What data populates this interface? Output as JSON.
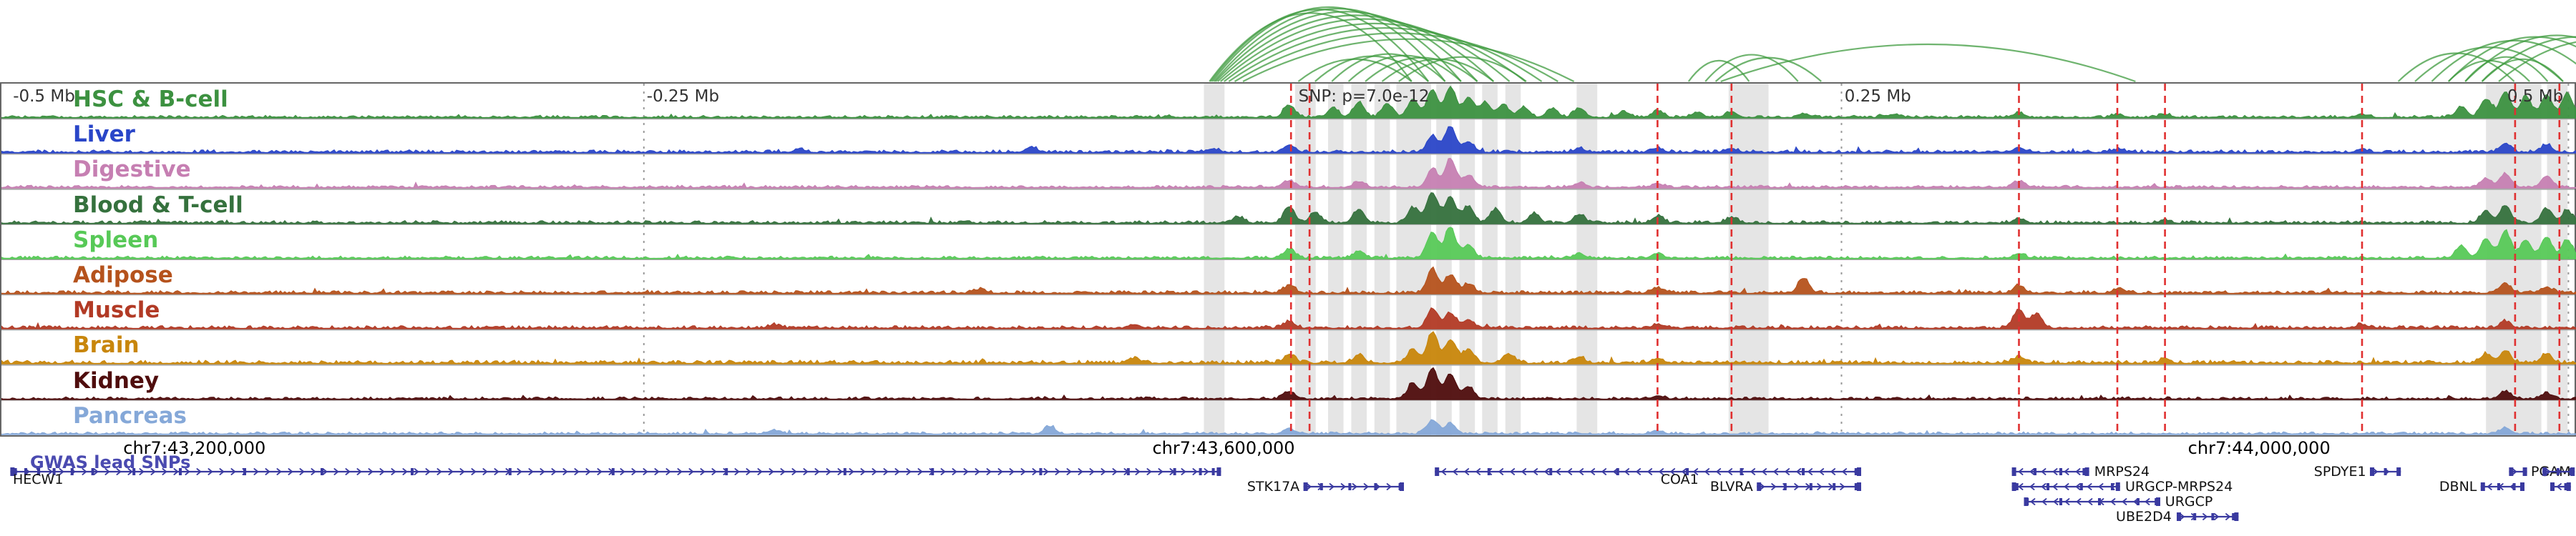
{
  "chart_data": {
    "type": "genome-browser",
    "gwas_track_label": "GWAS lead SNPs",
    "snp_annotation": {
      "text": "SNP: p=7.0e-12",
      "x": 0.5035
    },
    "relative_scale_labels": [
      {
        "text": "-0.5 Mb",
        "x": 0.0045,
        "anchor": "start"
      },
      {
        "text": "-0.25 Mb",
        "x": 0.2505,
        "anchor": "start"
      },
      {
        "text": "0.25 Mb",
        "x": 0.7155,
        "anchor": "start"
      },
      {
        "text": "0.5 Mb",
        "x": 0.9945,
        "anchor": "end"
      }
    ],
    "region": {
      "coordinate_labels": [
        {
          "text": "chr7:43,200,000",
          "x": 0.0755
        },
        {
          "text": "chr7:43,600,000",
          "x": 0.475
        },
        {
          "text": "chr7:44,000,000",
          "x": 0.877
        }
      ]
    },
    "gridlines": [
      0.2494,
      0.7143,
      0.9965
    ],
    "lead_snp_positions": [
      0.5006,
      0.5078,
      0.6429,
      0.6716,
      0.7832,
      0.8214,
      0.8399,
      0.9164,
      0.9758,
      0.993
    ],
    "highlight_bands": [
      [
        0.4668,
        0.008
      ],
      [
        0.5022,
        0.008
      ],
      [
        0.515,
        0.006
      ],
      [
        0.524,
        0.006
      ],
      [
        0.533,
        0.006
      ],
      [
        0.5415,
        0.0135
      ],
      [
        0.557,
        0.006
      ],
      [
        0.566,
        0.006
      ],
      [
        0.5748,
        0.006
      ],
      [
        0.5838,
        0.006
      ],
      [
        0.6115,
        0.008
      ],
      [
        0.6705,
        0.0155
      ],
      [
        0.9645,
        0.0215
      ],
      [
        0.9882,
        0.008
      ]
    ],
    "interaction_arcs": [
      [
        0.4695,
        0.548,
        0.92
      ],
      [
        0.47,
        0.5545,
        0.97
      ],
      [
        0.4706,
        0.561,
        1.0
      ],
      [
        0.4713,
        0.5672,
        0.98
      ],
      [
        0.4719,
        0.5735,
        0.94
      ],
      [
        0.4727,
        0.5798,
        0.89
      ],
      [
        0.4738,
        0.586,
        0.84
      ],
      [
        0.4752,
        0.5922,
        0.78
      ],
      [
        0.477,
        0.5985,
        0.72
      ],
      [
        0.4793,
        0.6048,
        0.65
      ],
      [
        0.4825,
        0.611,
        0.57
      ],
      [
        0.504,
        0.548,
        0.3
      ],
      [
        0.5105,
        0.5545,
        0.34
      ],
      [
        0.517,
        0.561,
        0.37
      ],
      [
        0.5235,
        0.5672,
        0.35
      ],
      [
        0.53,
        0.5735,
        0.32
      ],
      [
        0.5365,
        0.5798,
        0.3
      ],
      [
        0.543,
        0.5925,
        0.33
      ],
      [
        0.6555,
        0.679,
        0.28
      ],
      [
        0.662,
        0.698,
        0.36
      ],
      [
        0.666,
        0.707,
        0.32
      ],
      [
        0.668,
        0.829,
        0.5
      ],
      [
        0.931,
        0.976,
        0.38
      ],
      [
        0.9375,
        0.995,
        0.46
      ],
      [
        0.944,
        1.008,
        0.55
      ],
      [
        0.9505,
        1.018,
        0.6
      ],
      [
        0.957,
        1.028,
        0.62
      ],
      [
        0.9635,
        1.038,
        0.6
      ],
      [
        0.97,
        1.048,
        0.56
      ],
      [
        0.957,
        0.989,
        0.33
      ],
      [
        0.9635,
        0.995,
        0.3
      ],
      [
        0.9505,
        0.982,
        0.28
      ]
    ],
    "tracks": [
      {
        "name": "HSC & B-cell",
        "color": "#3c9140",
        "noise": 0.05,
        "peaks": [
          [
            0.5,
            0.4
          ],
          [
            0.517,
            0.3
          ],
          [
            0.527,
            0.5
          ],
          [
            0.538,
            0.45
          ],
          [
            0.548,
            0.6
          ],
          [
            0.5555,
            0.9
          ],
          [
            0.5625,
            1.0
          ],
          [
            0.5695,
            0.65
          ],
          [
            0.576,
            0.5
          ],
          [
            0.583,
            0.42
          ],
          [
            0.591,
            0.34
          ],
          [
            0.602,
            0.28
          ],
          [
            0.6125,
            0.3
          ],
          [
            0.63,
            0.18
          ],
          [
            0.6429,
            0.22
          ],
          [
            0.658,
            0.15
          ],
          [
            0.6716,
            0.18
          ],
          [
            0.7,
            0.12
          ],
          [
            0.735,
            0.1
          ],
          [
            0.7832,
            0.15
          ],
          [
            0.8214,
            0.1
          ],
          [
            0.8399,
            0.1
          ],
          [
            0.9164,
            0.1
          ],
          [
            0.955,
            0.35
          ],
          [
            0.9645,
            0.6
          ],
          [
            0.972,
            0.85
          ],
          [
            0.98,
            0.7
          ],
          [
            0.988,
            0.75
          ],
          [
            0.996,
            0.8
          ]
        ]
      },
      {
        "name": "Liver",
        "color": "#2a46c8",
        "noise": 0.06,
        "peaks": [
          [
            0.31,
            0.1
          ],
          [
            0.4,
            0.16
          ],
          [
            0.47,
            0.12
          ],
          [
            0.5,
            0.25
          ],
          [
            0.5555,
            0.55
          ],
          [
            0.5625,
            0.85
          ],
          [
            0.5695,
            0.35
          ],
          [
            0.6125,
            0.12
          ],
          [
            0.6429,
            0.14
          ],
          [
            0.6716,
            0.12
          ],
          [
            0.7832,
            0.16
          ],
          [
            0.8214,
            0.1
          ],
          [
            0.9164,
            0.1
          ],
          [
            0.972,
            0.3
          ],
          [
            0.988,
            0.25
          ]
        ]
      },
      {
        "name": "Digestive",
        "color": "#c67fb2",
        "noise": 0.05,
        "peaks": [
          [
            0.5,
            0.22
          ],
          [
            0.527,
            0.18
          ],
          [
            0.5555,
            0.6
          ],
          [
            0.5625,
            0.95
          ],
          [
            0.5695,
            0.4
          ],
          [
            0.6125,
            0.14
          ],
          [
            0.6429,
            0.12
          ],
          [
            0.7832,
            0.2
          ],
          [
            0.9645,
            0.3
          ],
          [
            0.972,
            0.45
          ],
          [
            0.988,
            0.35
          ]
        ]
      },
      {
        "name": "Blood & T-cell",
        "color": "#35713d",
        "noise": 0.06,
        "peaks": [
          [
            0.48,
            0.2
          ],
          [
            0.5,
            0.55
          ],
          [
            0.51,
            0.35
          ],
          [
            0.527,
            0.45
          ],
          [
            0.548,
            0.5
          ],
          [
            0.5555,
            1.0
          ],
          [
            0.5625,
            0.88
          ],
          [
            0.5695,
            0.55
          ],
          [
            0.58,
            0.45
          ],
          [
            0.595,
            0.32
          ],
          [
            0.6125,
            0.28
          ],
          [
            0.6429,
            0.22
          ],
          [
            0.6716,
            0.18
          ],
          [
            0.7832,
            0.15
          ],
          [
            0.8399,
            0.1
          ],
          [
            0.9645,
            0.4
          ],
          [
            0.972,
            0.55
          ],
          [
            0.988,
            0.45
          ],
          [
            0.996,
            0.4
          ]
        ]
      },
      {
        "name": "Spleen",
        "color": "#57c957",
        "noise": 0.05,
        "peaks": [
          [
            0.5,
            0.3
          ],
          [
            0.527,
            0.22
          ],
          [
            0.5555,
            0.85
          ],
          [
            0.5625,
            1.0
          ],
          [
            0.5695,
            0.45
          ],
          [
            0.6125,
            0.15
          ],
          [
            0.6429,
            0.14
          ],
          [
            0.7832,
            0.16
          ],
          [
            0.955,
            0.4
          ],
          [
            0.9645,
            0.65
          ],
          [
            0.972,
            0.9
          ],
          [
            0.98,
            0.6
          ],
          [
            0.988,
            0.7
          ],
          [
            0.996,
            0.6
          ]
        ]
      },
      {
        "name": "Adipose",
        "color": "#b5521c",
        "noise": 0.06,
        "peaks": [
          [
            0.38,
            0.12
          ],
          [
            0.5,
            0.25
          ],
          [
            0.5555,
            0.8
          ],
          [
            0.5625,
            0.6
          ],
          [
            0.5695,
            0.3
          ],
          [
            0.6429,
            0.15
          ],
          [
            0.6996,
            0.5
          ],
          [
            0.7832,
            0.25
          ],
          [
            0.8214,
            0.12
          ],
          [
            0.972,
            0.28
          ],
          [
            0.988,
            0.2
          ]
        ]
      },
      {
        "name": "Muscle",
        "color": "#b23a25",
        "noise": 0.06,
        "peaks": [
          [
            0.3,
            0.1
          ],
          [
            0.44,
            0.12
          ],
          [
            0.5,
            0.22
          ],
          [
            0.5555,
            0.65
          ],
          [
            0.5625,
            0.5
          ],
          [
            0.5695,
            0.28
          ],
          [
            0.6429,
            0.12
          ],
          [
            0.7832,
            0.6
          ],
          [
            0.79,
            0.45
          ],
          [
            0.9164,
            0.12
          ],
          [
            0.972,
            0.22
          ]
        ]
      },
      {
        "name": "Brain",
        "color": "#c8860b",
        "noise": 0.07,
        "peaks": [
          [
            0.44,
            0.16
          ],
          [
            0.5,
            0.3
          ],
          [
            0.527,
            0.25
          ],
          [
            0.548,
            0.45
          ],
          [
            0.5555,
            1.0
          ],
          [
            0.5625,
            0.78
          ],
          [
            0.5695,
            0.45
          ],
          [
            0.585,
            0.3
          ],
          [
            0.6125,
            0.2
          ],
          [
            0.6429,
            0.16
          ],
          [
            0.7832,
            0.2
          ],
          [
            0.8399,
            0.12
          ],
          [
            0.9645,
            0.3
          ],
          [
            0.972,
            0.4
          ],
          [
            0.988,
            0.3
          ]
        ]
      },
      {
        "name": "Kidney",
        "color": "#4f0d0d",
        "noise": 0.05,
        "peaks": [
          [
            0.5,
            0.25
          ],
          [
            0.548,
            0.5
          ],
          [
            0.5555,
            1.0
          ],
          [
            0.5625,
            0.82
          ],
          [
            0.5695,
            0.4
          ],
          [
            0.6429,
            0.1
          ],
          [
            0.972,
            0.25
          ],
          [
            0.988,
            0.18
          ]
        ]
      },
      {
        "name": "Pancreas",
        "color": "#85a8d8",
        "noise": 0.05,
        "peaks": [
          [
            0.3,
            0.12
          ],
          [
            0.407,
            0.25
          ],
          [
            0.5,
            0.16
          ],
          [
            0.5555,
            0.45
          ],
          [
            0.5625,
            0.35
          ],
          [
            0.6429,
            0.1
          ],
          [
            0.972,
            0.2
          ]
        ]
      }
    ],
    "genes": [
      {
        "name": "HECW1",
        "row": 0,
        "x1": 0.004,
        "x2": 0.474,
        "strand": "+",
        "label": "below-start",
        "label_x": 0.005,
        "exons": [
          0.006,
          0.01,
          0.015,
          0.021,
          0.028,
          0.036,
          0.052,
          0.07,
          0.095,
          0.125,
          0.16,
          0.198,
          0.238,
          0.282,
          0.328,
          0.362,
          0.404,
          0.438,
          0.456,
          0.466,
          0.471
        ]
      },
      {
        "name": "STK17A",
        "row": 1,
        "x1": 0.506,
        "x2": 0.545,
        "strand": "+",
        "label": "inline-left",
        "label_x": 0.5045,
        "exons": [
          0.507,
          0.513,
          0.524,
          0.534,
          0.5435
        ]
      },
      {
        "name": "COA1",
        "row": 0,
        "x1": 0.557,
        "x2": 0.7225,
        "strand": "-",
        "label": "below-middle",
        "label_x": 0.652,
        "exons": [
          0.558,
          0.578,
          0.602,
          0.628,
          0.655,
          0.676,
          0.7,
          0.7205
        ]
      },
      {
        "name": "BLVRA",
        "row": 1,
        "x1": 0.682,
        "x2": 0.7225,
        "strand": "+",
        "label": "inline-left",
        "label_x": 0.6805,
        "exons": [
          0.683,
          0.693,
          0.703,
          0.712,
          0.7205
        ]
      },
      {
        "name": "MRPS24",
        "row": 0,
        "x1": 0.781,
        "x2": 0.811,
        "strand": "-",
        "label": "inline-right",
        "label_x": 0.813,
        "exons": [
          0.782,
          0.79,
          0.8,
          0.809
        ]
      },
      {
        "name": "URGCP-MRPS24",
        "row": 1,
        "x1": 0.781,
        "x2": 0.823,
        "strand": "-",
        "label": "inline-right",
        "label_x": 0.825,
        "exons": [
          0.783,
          0.795,
          0.808,
          0.82
        ]
      },
      {
        "name": "URGCP",
        "row": 2,
        "x1": 0.7857,
        "x2": 0.8386,
        "strand": "-",
        "label": "inline-right",
        "label_x": 0.8405,
        "exons": [
          0.787,
          0.8,
          0.815,
          0.83,
          0.837
        ]
      },
      {
        "name": "UBE2D4",
        "row": 3,
        "x1": 0.845,
        "x2": 0.869,
        "strand": "+",
        "label": "inline-left",
        "label_x": 0.843,
        "exons": [
          0.846,
          0.852,
          0.859,
          0.867
        ]
      },
      {
        "name": "SPDYE1",
        "row": 0,
        "x1": 0.92,
        "x2": 0.932,
        "strand": "+",
        "label": "inline-left",
        "label_x": 0.9185,
        "exons": [
          0.921,
          0.926,
          0.931
        ]
      },
      {
        "name": "DBNL",
        "row": 1,
        "x1": 0.963,
        "x2": 0.98,
        "strand": "-",
        "label": "inline-left",
        "label_x": 0.9615,
        "exons": [
          0.964,
          0.97,
          0.976,
          0.979
        ]
      },
      {
        "name": "PGAM",
        "row": 0,
        "x1": 0.974,
        "x2": 0.981,
        "strand": "+",
        "label": "inline-right",
        "label_x": 0.9825,
        "exons": [
          0.975,
          0.98
        ]
      },
      {
        "name": "",
        "row": 0,
        "x1": 0.987,
        "x2": 0.9995,
        "strand": "+",
        "label": "none",
        "label_x": 0,
        "exons": [
          0.988,
          0.993,
          0.998
        ]
      },
      {
        "name": "",
        "row": 1,
        "x1": 0.99,
        "x2": 0.998,
        "strand": "-",
        "label": "none",
        "label_x": 0,
        "exons": [
          0.991,
          0.996
        ]
      }
    ],
    "colors": {
      "arc": "#3f9b3f",
      "lead_snp_line": "#e03030",
      "gridline": "#9a9a9a",
      "band": "rgba(125,125,125,0.20)",
      "separator": "#a6a6a6",
      "border": "#666666",
      "gene": "#3a3aa0",
      "gene_label": "#111111",
      "scale_label": "#333333",
      "coordinate_label": "#000000",
      "gwas_label": "#4a4ab0"
    }
  }
}
